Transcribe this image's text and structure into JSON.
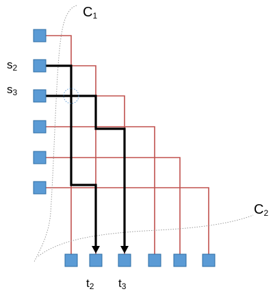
{
  "labels": {
    "c1": {
      "base": "C",
      "sub": "1"
    },
    "c2": {
      "base": "C",
      "sub": "2"
    },
    "s2": {
      "base": "s",
      "sub": "2"
    },
    "s3": {
      "base": "s",
      "sub": "3"
    },
    "t2": {
      "base": "t",
      "sub": "2"
    },
    "t3": {
      "base": "t",
      "sub": "3"
    }
  },
  "colors": {
    "wire": "#c0504d",
    "node_fill": "#5b9bd5",
    "node_stroke": "#2e6da4",
    "path": "#000000",
    "curve": "#999999",
    "marker": "#5b9bd5"
  },
  "sources": 6,
  "sinks": 6
}
